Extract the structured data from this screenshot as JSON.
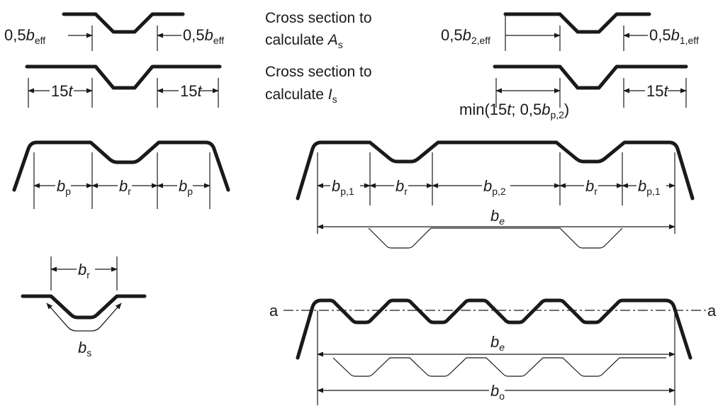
{
  "captions": {
    "as_line1": "Cross section to",
    "as_line2_prefix": "calculate ",
    "as_symbol": "A",
    "as_sub": "s",
    "is_line1": "Cross section to",
    "is_line2_prefix": "calculate ",
    "is_symbol": "I",
    "is_sub": "s"
  },
  "labels": {
    "half": "0,5",
    "b": "b",
    "eff": "eff",
    "two_eff": "2,eff",
    "one_eff": "1,eff",
    "fifteen": "15",
    "t": "t",
    "min_prefix": "min(15",
    "min_mid": "; 0,5",
    "min_sub": "p,2",
    "min_close": ")",
    "p": "p",
    "r": "r",
    "p1": "p,1",
    "p2": "p,2",
    "e": "e",
    "s": "s",
    "o": "o",
    "axis": "a"
  }
}
